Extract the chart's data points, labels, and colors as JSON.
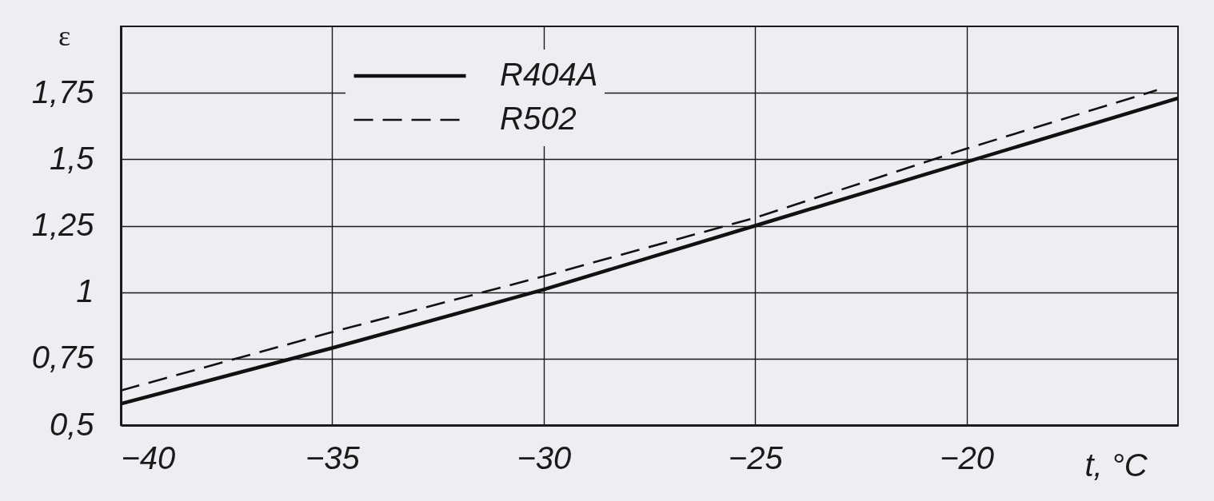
{
  "chart_data": {
    "type": "line",
    "xlabel": "t, °C",
    "ylabel": "ε",
    "xlim": [
      -40,
      -15
    ],
    "xticks": [
      -40,
      -35,
      -30,
      -25,
      -20
    ],
    "ylim": [
      0.5,
      2
    ],
    "yticks": [
      {
        "value": 0.5,
        "label": "0,5"
      },
      {
        "value": 0.75,
        "label": "0,75"
      },
      {
        "value": 1,
        "label": "1"
      },
      {
        "value": 1.25,
        "label": "1,25"
      },
      {
        "value": 1.5,
        "label": "1,5"
      },
      {
        "value": 1.75,
        "label": "1,75"
      }
    ],
    "grid": true,
    "legend": "top left",
    "series": [
      {
        "name": "R404A",
        "color": "#111111",
        "line_style": "solid",
        "x": [
          -40,
          -35,
          -30,
          -25,
          -20,
          -15
        ],
        "values": [
          0.58,
          0.79,
          1.01,
          1.25,
          1.49,
          1.73
        ]
      },
      {
        "name": "R502",
        "color": "#111111",
        "line_style": "dashed",
        "x": [
          -40,
          -35,
          -30,
          -25,
          -20,
          -15.5
        ],
        "values": [
          0.63,
          0.85,
          1.06,
          1.28,
          1.54,
          1.76
        ]
      }
    ]
  }
}
